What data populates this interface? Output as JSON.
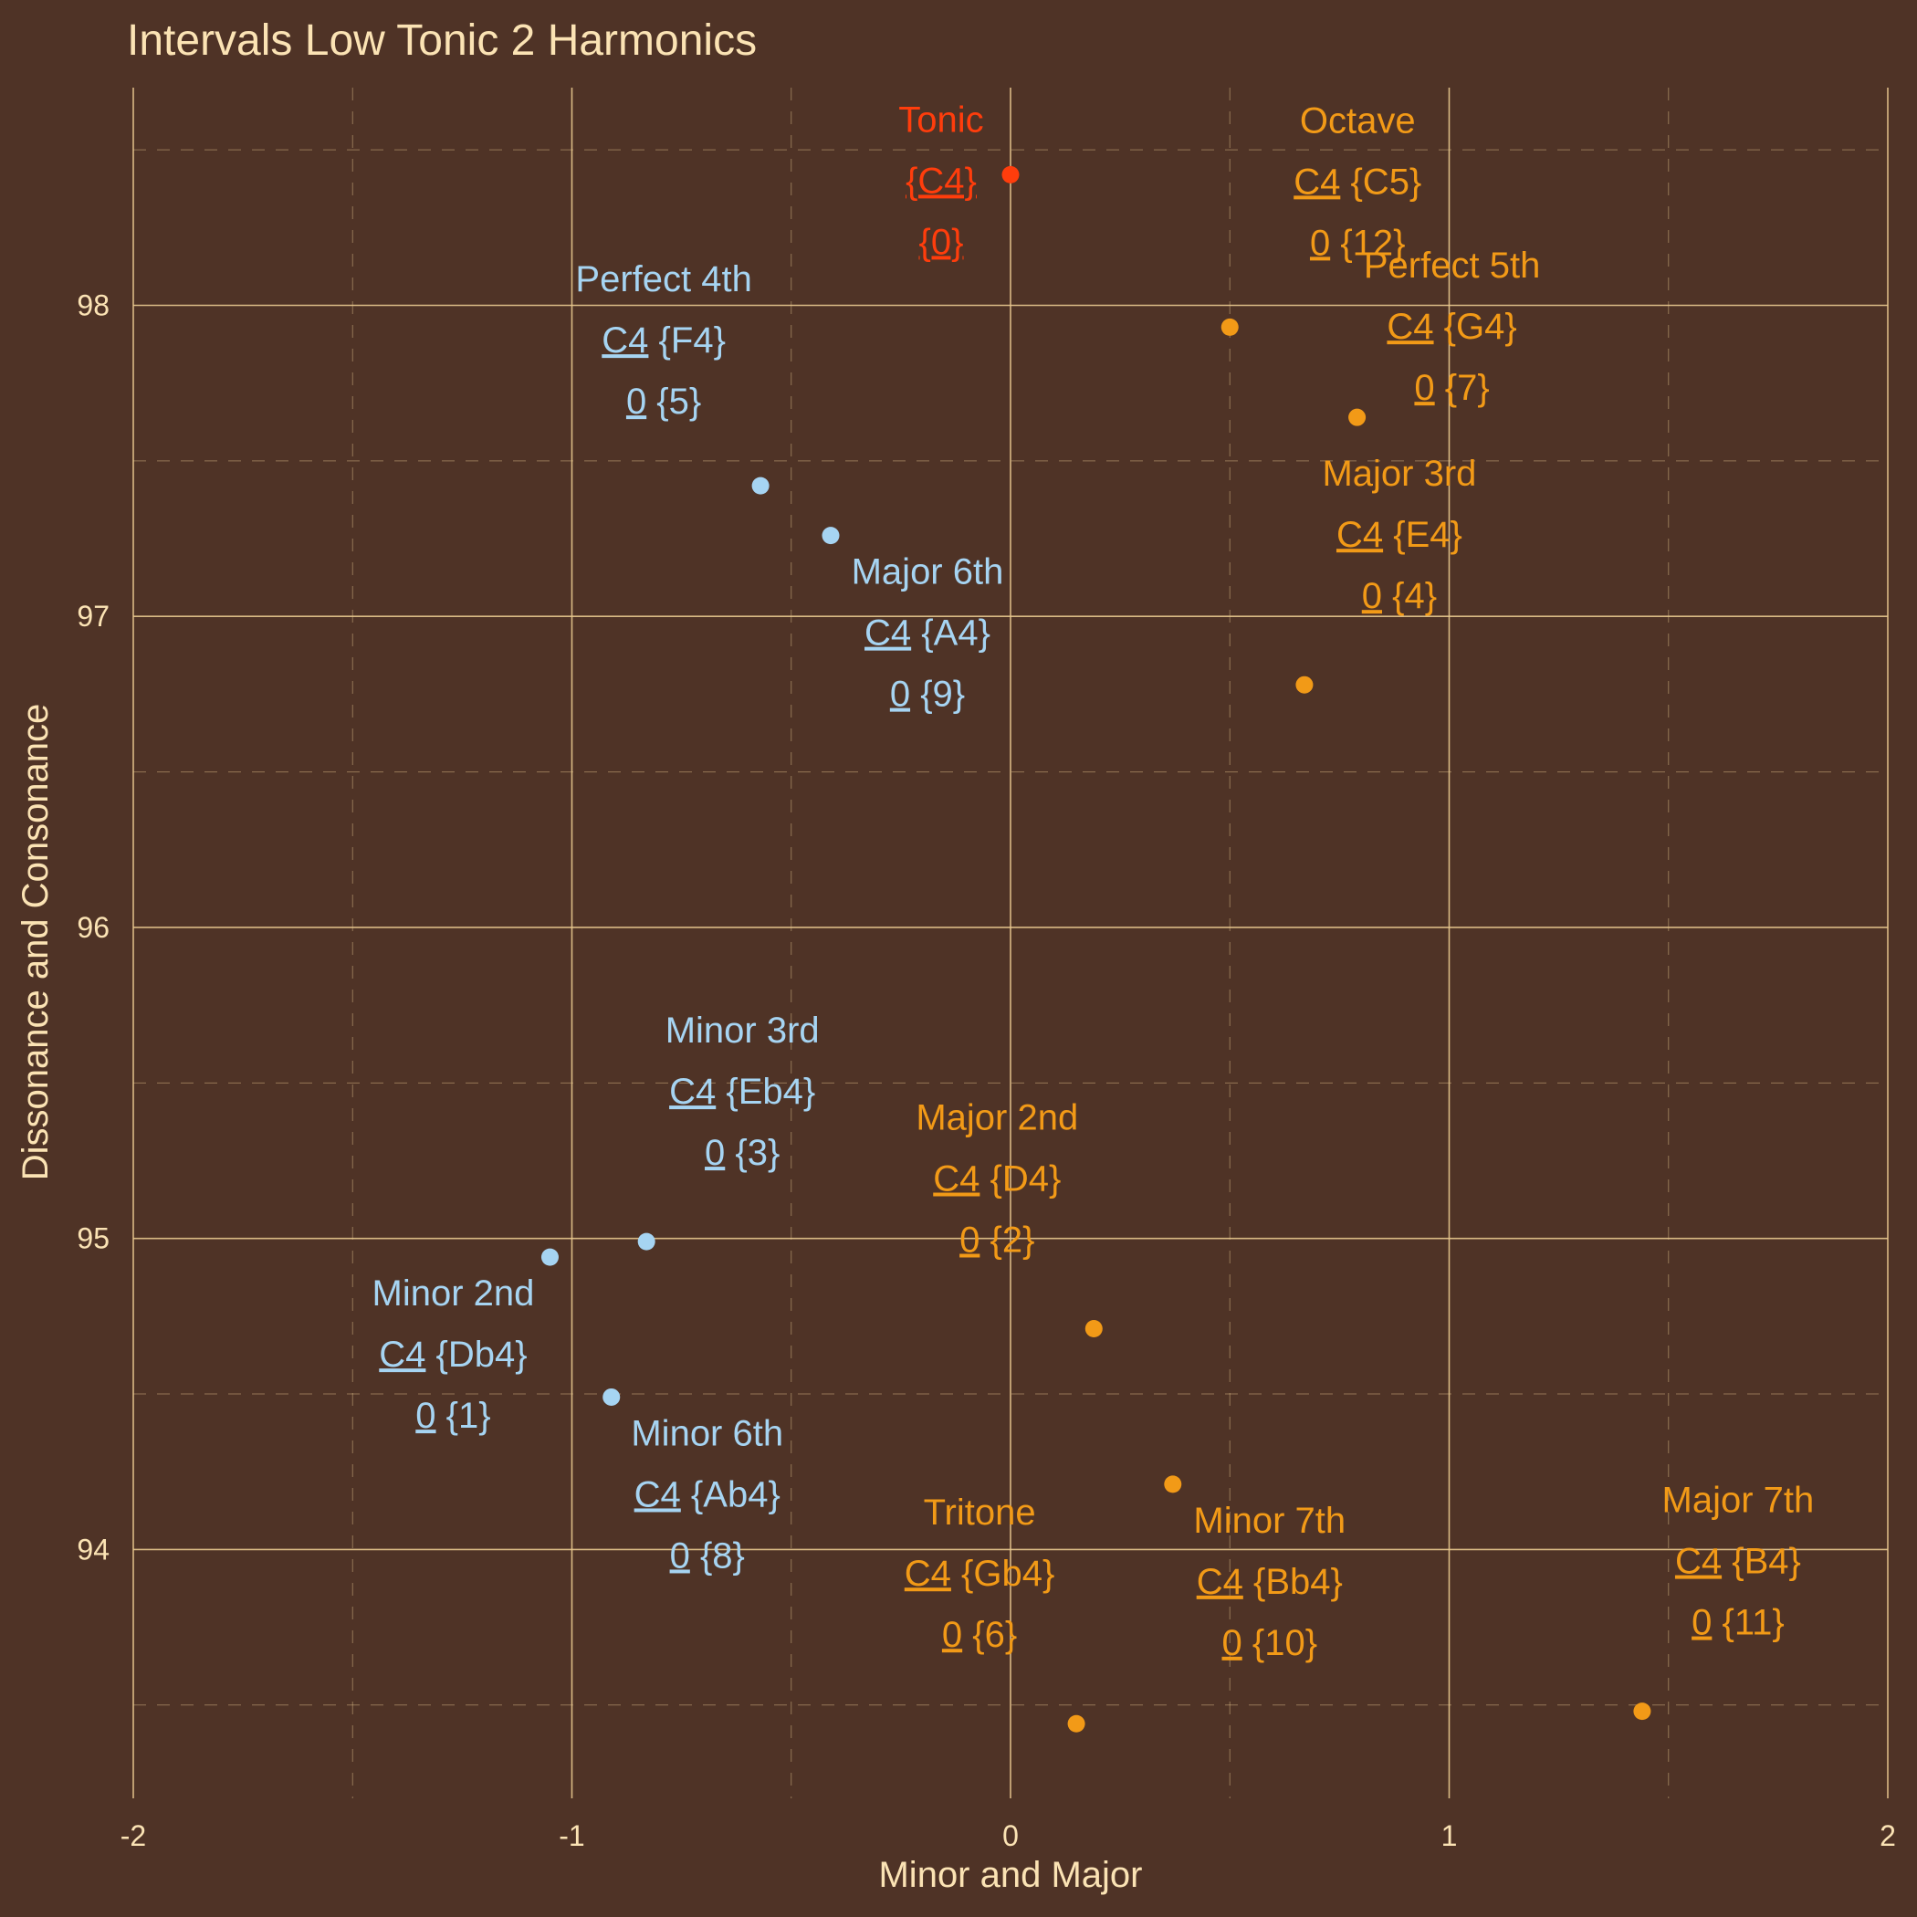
{
  "chart_data": {
    "type": "scatter",
    "title": "Intervals Low Tonic 2 Harmonics",
    "xlabel": "Minor and Major",
    "ylabel": "Dissonance and Consonance",
    "xlim": [
      -2,
      2
    ],
    "ylim": [
      93.2,
      98.7
    ],
    "x_ticks": [
      -2,
      -1,
      0,
      1,
      2
    ],
    "x_tick_labels": [
      "-2",
      "-1",
      "0",
      "1",
      "2"
    ],
    "y_ticks": [
      94,
      95,
      96,
      97,
      98
    ],
    "y_tick_labels": [
      "94",
      "95",
      "96",
      "97",
      "98"
    ],
    "grid": true,
    "legend": "none",
    "colors": {
      "background": "#4f3326",
      "grid": "#e9c98f",
      "text": "#fbe3b4",
      "tonic": "#ff3d0c",
      "minor": "#a6d4f2",
      "major": "#f29a17"
    },
    "points": [
      {
        "name": "Tonic",
        "root": "",
        "note": "{C4}",
        "root_value": "",
        "value": "{0}",
        "x": 0.0,
        "y": 98.42,
        "group": "tonic"
      },
      {
        "name": "Octave",
        "root": "C4",
        "note": "{C5}",
        "root_value": "0",
        "value": "{12}",
        "x": 0.5,
        "y": 97.93,
        "group": "major"
      },
      {
        "name": "Perfect 5th",
        "root": "C4",
        "note": "{G4}",
        "root_value": "0",
        "value": "{7}",
        "x": 0.79,
        "y": 97.64,
        "group": "major"
      },
      {
        "name": "Perfect 4th",
        "root": "C4",
        "note": "{F4}",
        "root_value": "0",
        "value": "{5}",
        "x": -0.57,
        "y": 97.42,
        "group": "minor"
      },
      {
        "name": "Major 6th",
        "root": "C4",
        "note": "{A4}",
        "root_value": "0",
        "value": "{9}",
        "x": -0.41,
        "y": 97.26,
        "group": "minor"
      },
      {
        "name": "Major 3rd",
        "root": "C4",
        "note": "{E4}",
        "root_value": "0",
        "value": "{4}",
        "x": 0.67,
        "y": 96.78,
        "group": "major"
      },
      {
        "name": "Minor 3rd",
        "root": "C4",
        "note": "{Eb4}",
        "root_value": "0",
        "value": "{3}",
        "x": -0.83,
        "y": 94.99,
        "group": "minor"
      },
      {
        "name": "Minor 2nd",
        "root": "C4",
        "note": "{Db4}",
        "root_value": "0",
        "value": "{1}",
        "x": -1.05,
        "y": 94.94,
        "group": "minor"
      },
      {
        "name": "Major 2nd",
        "root": "C4",
        "note": "{D4}",
        "root_value": "0",
        "value": "{2}",
        "x": 0.19,
        "y": 94.71,
        "group": "major"
      },
      {
        "name": "Minor 6th",
        "root": "C4",
        "note": "{Ab4}",
        "root_value": "0",
        "value": "{8}",
        "x": -0.91,
        "y": 94.49,
        "group": "minor"
      },
      {
        "name": "Minor 7th",
        "root": "C4",
        "note": "{Bb4}",
        "root_value": "0",
        "value": "{10}",
        "x": 0.37,
        "y": 94.21,
        "group": "major"
      },
      {
        "name": "Major 7th",
        "root": "C4",
        "note": "{B4}",
        "root_value": "0",
        "value": "{11}",
        "x": 1.44,
        "y": 93.48,
        "group": "major"
      },
      {
        "name": "Tritone",
        "root": "C4",
        "note": "{Gb4}",
        "root_value": "0",
        "value": "{6}",
        "x": 0.15,
        "y": 93.44,
        "group": "major"
      }
    ]
  }
}
